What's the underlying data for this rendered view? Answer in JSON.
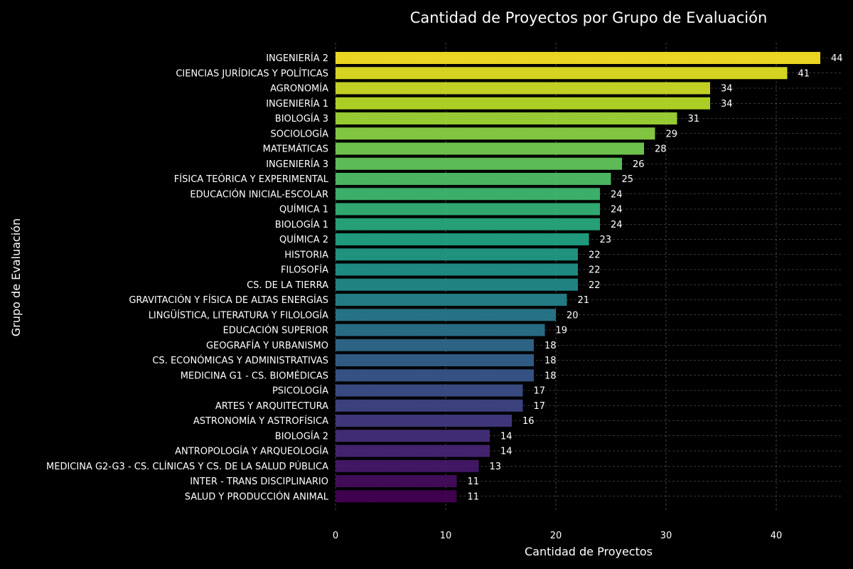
{
  "chart_data": {
    "type": "bar",
    "orientation": "horizontal",
    "title": "Cantidad de Proyectos por Grupo de Evaluación",
    "xlabel": "Cantidad de Proyectos",
    "ylabel": "Grupo de Evaluación",
    "xlim": [
      0,
      46
    ],
    "xticks": [
      0,
      10,
      20,
      30,
      40
    ],
    "grid": true,
    "colormap": "viridis",
    "background": "#000000",
    "categories": [
      "INGENIERÍA 2",
      "CIENCIAS JURÍDICAS Y POLÍTICAS",
      "AGRONOMÍA",
      "INGENIERÍA 1",
      "BIOLOGÍA 3",
      "SOCIOLOGÍA",
      "MATEMÁTICAS",
      "INGENIERÍA 3",
      "FÍSICA TEÓRICA Y EXPERIMENTAL",
      "EDUCACIÓN INICIAL-ESCOLAR",
      "QUÍMICA 1",
      "BIOLOGÍA 1",
      "QUÍMICA 2",
      "HISTORIA",
      "FILOSOFÍA",
      "CS. DE LA TIERRA",
      "GRAVITACIÓN Y FÍSICA DE ALTAS ENERGÍAS",
      "LINGÜÍSTICA, LITERATURA Y FILOLOGÍA",
      "EDUCACIÓN SUPERIOR",
      "GEOGRAFÍA Y URBANISMO",
      "CS. ECONÓMICAS Y ADMINISTRATIVAS",
      "MEDICINA G1 - CS. BIOMÉDICAS",
      "PSICOLOGÍA",
      "ARTES Y ARQUITECTURA",
      "ASTRONOMÍA Y ASTROFÍSICA",
      "BIOLOGÍA 2",
      "ANTROPOLOGÍA Y ARQUEOLOGÍA",
      "MEDICINA G2-G3 - CS. CLÍNICAS Y CS. DE LA SALUD PÚBLICA",
      "INTER - TRANS DISCIPLINARIO",
      "SALUD Y PRODUCCIÓN ANIMAL"
    ],
    "values": [
      44,
      41,
      34,
      34,
      31,
      29,
      28,
      26,
      25,
      24,
      24,
      24,
      23,
      22,
      22,
      22,
      21,
      20,
      19,
      18,
      18,
      18,
      17,
      17,
      16,
      14,
      14,
      13,
      11,
      11
    ]
  }
}
